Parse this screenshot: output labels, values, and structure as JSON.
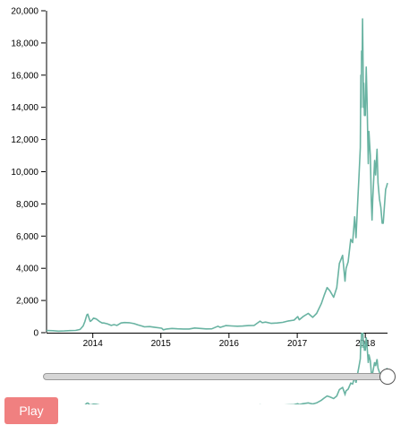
{
  "chart_data": {
    "type": "line",
    "title": "",
    "xlabel": "",
    "ylabel": "",
    "ylim": [
      0,
      20000
    ],
    "yticks": [
      "0",
      "2,000",
      "4,000",
      "6,000",
      "8,000",
      "10,000",
      "12,000",
      "14,000",
      "16,000",
      "18,000",
      "20,000"
    ],
    "xticks": [
      "2014",
      "2015",
      "2016",
      "2017",
      "2018"
    ],
    "xlim": [
      "2013-04-28",
      "2018-04-30"
    ],
    "grid": false,
    "line_color": "#69b3a2",
    "series": [
      {
        "x": [
          "2013-04-28",
          "2013-06-01",
          "2013-07-01",
          "2013-08-01",
          "2013-09-01",
          "2013-10-01",
          "2013-10-25",
          "2013-11-10",
          "2013-11-20",
          "2013-11-30",
          "2013-12-05",
          "2013-12-12",
          "2013-12-18",
          "2013-12-25",
          "2014-01-05",
          "2014-01-20",
          "2014-02-05",
          "2014-02-20",
          "2014-03-01",
          "2014-03-20",
          "2014-04-10",
          "2014-04-25",
          "2014-05-10",
          "2014-06-01",
          "2014-06-20",
          "2014-07-15",
          "2014-08-10",
          "2014-09-01",
          "2014-09-20",
          "2014-10-05",
          "2014-11-01",
          "2014-12-01",
          "2015-01-05",
          "2015-01-14",
          "2015-02-01",
          "2015-03-01",
          "2015-04-01",
          "2015-05-01",
          "2015-06-01",
          "2015-07-01",
          "2015-08-01",
          "2015-09-01",
          "2015-10-01",
          "2015-11-03",
          "2015-11-15",
          "2015-12-15",
          "2016-01-15",
          "2016-02-15",
          "2016-03-15",
          "2016-04-15",
          "2016-05-15",
          "2016-06-16",
          "2016-06-28",
          "2016-07-15",
          "2016-08-15",
          "2016-09-15",
          "2016-10-15",
          "2016-11-15",
          "2016-12-15",
          "2017-01-04",
          "2017-01-12",
          "2017-02-01",
          "2017-03-01",
          "2017-03-25",
          "2017-04-15",
          "2017-05-10",
          "2017-05-25",
          "2017-06-10",
          "2017-06-25",
          "2017-07-15",
          "2017-08-01",
          "2017-08-15",
          "2017-09-01",
          "2017-09-14",
          "2017-09-20",
          "2017-10-01",
          "2017-10-15",
          "2017-10-25",
          "2017-11-05",
          "2017-11-12",
          "2017-11-20",
          "2017-11-28",
          "2017-12-05",
          "2017-12-08",
          "2017-12-10",
          "2017-12-12",
          "2017-12-15",
          "2017-12-17",
          "2017-12-19",
          "2017-12-22",
          "2017-12-24",
          "2017-12-27",
          "2018-01-01",
          "2018-01-06",
          "2018-01-10",
          "2018-01-17",
          "2018-01-20",
          "2018-01-28",
          "2018-02-02",
          "2018-02-06",
          "2018-02-10",
          "2018-02-20",
          "2018-02-25",
          "2018-03-05",
          "2018-03-10",
          "2018-03-18",
          "2018-03-25",
          "2018-04-01",
          "2018-04-07",
          "2018-04-12",
          "2018-04-20",
          "2018-04-25",
          "2018-04-30"
        ],
        "y": [
          135,
          120,
          95,
          105,
          130,
          140,
          200,
          420,
          700,
          1100,
          1150,
          900,
          700,
          750,
          900,
          850,
          700,
          600,
          600,
          550,
          450,
          500,
          450,
          600,
          630,
          620,
          560,
          480,
          420,
          360,
          380,
          330,
          280,
          180,
          230,
          260,
          240,
          230,
          230,
          290,
          260,
          235,
          240,
          400,
          330,
          440,
          420,
          400,
          410,
          440,
          450,
          720,
          620,
          660,
          580,
          600,
          640,
          730,
          780,
          1000,
          800,
          1000,
          1200,
          950,
          1200,
          1800,
          2300,
          2800,
          2600,
          2200,
          2800,
          4300,
          4800,
          3200,
          4000,
          4400,
          5800,
          5600,
          7200,
          5900,
          7800,
          9700,
          11500,
          16000,
          14000,
          17500,
          17000,
          19500,
          17600,
          14000,
          15500,
          13500,
          13500,
          16500,
          14500,
          10500,
          12500,
          11000,
          8200,
          7000,
          8300,
          10700,
          9800,
          11400,
          9300,
          8300,
          7800,
          6800,
          6800,
          7600,
          8900,
          9100,
          9300
        ]
      }
    ]
  },
  "ui": {
    "play_label": "Play",
    "slider_value": 1.0
  }
}
